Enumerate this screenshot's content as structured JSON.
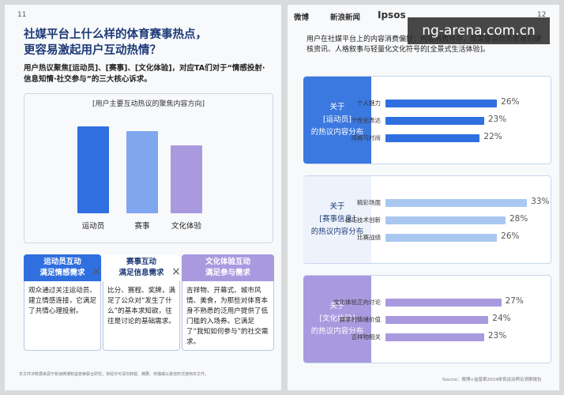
{
  "left_page": {
    "page_number": "11",
    "title_lines": [
      "社媒平台上什么样的体育赛事热点，",
      "更容易激起用户互动热情？"
    ],
    "subtitle": "用户热议聚焦[运动员]、[赛事]、[文化体验]，对应TA们对于“情感投射·信息知情·社交参与”的三大核心诉求。",
    "chart": {
      "type": "bar",
      "title": "[用户主要互动热议的聚焦内容方向]",
      "categories": [
        "运动员",
        "赛事",
        "文化体验"
      ],
      "values": [
        100,
        95,
        78
      ],
      "colors": [
        "#2f6fe0",
        "#7fa6ef",
        "#a99ae0"
      ],
      "ylim": [
        0,
        100
      ]
    },
    "cards": [
      {
        "header_lines": [
          "运动员互动",
          "满足情感需求"
        ],
        "body": "观众通过关注运动员、建立情感连接，它满足了共情心理投射。"
      },
      {
        "header_lines": [
          "赛事互动",
          "满足信息需求"
        ],
        "body": "比分、赛程、奖牌，满足了公众对“发生了什么”的基本求知欲，往往是讨论的基础需求。"
      },
      {
        "header_lines": [
          "文化体验互动",
          "满足参与需求"
        ],
        "body": "吉祥物、开幕式、城市风情、美食，为那些对体育本身不熟悉的泛用户提供了低门槛的入场券。它满足了“我知如何参与”的社交需求。"
      }
    ],
    "footer": "本文件涉数据来源于新浪微博和益普索联合研究，未经许可请勿转载、摘要、传播或以其他形式使用本文件。"
  },
  "right_page": {
    "page_number": "12",
    "logos": [
      "微博",
      "新浪新闻",
      "Ipsos"
    ],
    "intro": "用户在社媒平台上的内容消费偏好：内容消费并存，既需要高信息密度的硬核资讯、人格叙事与轻量化文化符号的[全景式生活体验]。",
    "xlim": [
      0,
      35
    ],
    "panels": [
      {
        "label_lines": [
          "关于",
          "[运动员]",
          "的热议内容分布"
        ],
        "color": "#2f6fe0",
        "categories": [
          "个人魅力",
          "个性化表达",
          "风格与时尚"
        ],
        "values": [
          26,
          23,
          22
        ],
        "value_labels": [
          "26%",
          "23%",
          "22%"
        ]
      },
      {
        "label_lines": [
          "关于",
          "[赛事信息]",
          "的热议内容分布"
        ],
        "color": "#a9c7f0",
        "categories": [
          "精彩场面",
          "技巧技术创新",
          "比赛战绩"
        ],
        "values": [
          33,
          28,
          26
        ],
        "value_labels": [
          "33%",
          "28%",
          "26%"
        ]
      },
      {
        "label_lines": [
          "关于",
          "[文化体验]",
          "的热议内容分布"
        ],
        "color": "#a99ae0",
        "categories": [
          "文化体验正向讨论",
          "赛事的情绪价值",
          "吉祥物相关"
        ],
        "values": [
          27,
          24,
          23
        ],
        "value_labels": [
          "27%",
          "24%",
          "23%"
        ]
      }
    ],
    "source": "Source：微博×益普索2024体育运动舆论洞察报告"
  },
  "watermark": "ng-arena.com.cn"
}
